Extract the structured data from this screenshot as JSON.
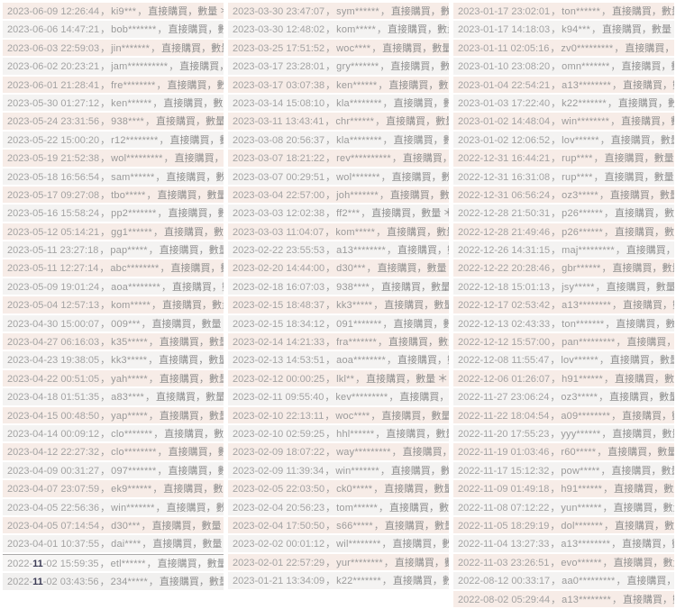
{
  "row_template": {
    "separator": "，",
    "purchase_text": "直接購買",
    "quantity_text": "數量",
    "quantity_symbol": "＊"
  },
  "colors": {
    "row_pink": "#f7ece7",
    "row_gray": "#f4f3f2",
    "text_gray": "#9a9a9a",
    "highlight": "#3b3b55",
    "divider_line": "#ababab"
  },
  "columns": [
    {
      "rows": [
        {
          "datetime": "2023-06-09 12:26:44",
          "user": "ki9***"
        },
        {
          "datetime": "2023-06-06 14:47:21",
          "user": "bob*******"
        },
        {
          "datetime": "2023-06-03 22:59:03",
          "user": "jin*******"
        },
        {
          "datetime": "2023-06-02 20:23:21",
          "user": "jam**********"
        },
        {
          "datetime": "2023-06-01 21:28:41",
          "user": "fre********"
        },
        {
          "datetime": "2023-05-30 01:27:12",
          "user": "ken******"
        },
        {
          "datetime": "2023-05-24 23:31:56",
          "user": "938****"
        },
        {
          "datetime": "2023-05-22 15:00:20",
          "user": "r12********"
        },
        {
          "datetime": "2023-05-19 21:52:38",
          "user": "wol*********"
        },
        {
          "datetime": "2023-05-18 16:56:54",
          "user": "sam******"
        },
        {
          "datetime": "2023-05-17 09:27:08",
          "user": "tbo*****"
        },
        {
          "datetime": "2023-05-16 15:58:24",
          "user": "pp2*******"
        },
        {
          "datetime": "2023-05-12 05:14:21",
          "user": "gg1******"
        },
        {
          "datetime": "2023-05-11 23:27:18",
          "user": "pap*****"
        },
        {
          "datetime": "2023-05-11 12:27:14",
          "user": "abc********"
        },
        {
          "datetime": "2023-05-09 19:01:24",
          "user": "aoa********"
        },
        {
          "datetime": "2023-05-04 12:57:13",
          "user": "kom*****"
        },
        {
          "datetime": "2023-04-30 15:00:07",
          "user": "009***"
        },
        {
          "datetime": "2023-04-27 06:16:03",
          "user": "k35*****"
        },
        {
          "datetime": "2023-04-23 19:38:05",
          "user": "kk3*****"
        },
        {
          "datetime": "2023-04-22 00:51:05",
          "user": "yah*****"
        },
        {
          "datetime": "2023-04-18 01:51:35",
          "user": "a83****"
        },
        {
          "datetime": "2023-04-15 00:48:50",
          "user": "yap*****"
        },
        {
          "datetime": "2023-04-14 00:09:12",
          "user": "clo*******"
        },
        {
          "datetime": "2023-04-12 22:27:32",
          "user": "clo********"
        },
        {
          "datetime": "2023-04-09 00:31:27",
          "user": "097*******"
        },
        {
          "datetime": "2023-04-07 23:07:59",
          "user": "ek9******"
        },
        {
          "datetime": "2023-04-05 22:56:36",
          "user": "win*******"
        },
        {
          "datetime": "2023-04-05 07:14:54",
          "user": "d30***"
        },
        {
          "datetime": "2023-04-01 10:37:55",
          "user": "dai****"
        },
        {
          "datetime": "2022-11-02 15:59:35",
          "user": "etl******",
          "highlight": "11",
          "divider": true,
          "muted": "a"
        },
        {
          "datetime": "2022-11-02 03:43:56",
          "user": "234*****",
          "highlight": "11",
          "muted": "b"
        }
      ]
    },
    {
      "rows": [
        {
          "datetime": "2023-03-30 23:47:07",
          "user": "sym******"
        },
        {
          "datetime": "2023-03-30 12:48:02",
          "user": "kom*****"
        },
        {
          "datetime": "2023-03-25 17:51:52",
          "user": "woc****"
        },
        {
          "datetime": "2023-03-17 23:28:01",
          "user": "gry*******"
        },
        {
          "datetime": "2023-03-17 03:07:38",
          "user": "ken******"
        },
        {
          "datetime": "2023-03-14 15:08:10",
          "user": "kla********"
        },
        {
          "datetime": "2023-03-11 13:43:41",
          "user": "chr******"
        },
        {
          "datetime": "2023-03-08 20:56:37",
          "user": "kla********"
        },
        {
          "datetime": "2023-03-07 18:21:22",
          "user": "rev**********"
        },
        {
          "datetime": "2023-03-07 00:29:51",
          "user": "wol*******"
        },
        {
          "datetime": "2023-03-04 22:57:00",
          "user": "joh*******"
        },
        {
          "datetime": "2023-03-03 12:02:38",
          "user": "ff2***"
        },
        {
          "datetime": "2023-03-03 11:04:07",
          "user": "kom*****"
        },
        {
          "datetime": "2023-02-22 23:55:53",
          "user": "a13********"
        },
        {
          "datetime": "2023-02-20 14:44:00",
          "user": "d30***"
        },
        {
          "datetime": "2023-02-18 16:07:03",
          "user": "938****"
        },
        {
          "datetime": "2023-02-15 18:48:37",
          "user": "kk3*****"
        },
        {
          "datetime": "2023-02-15 18:34:12",
          "user": "091*******"
        },
        {
          "datetime": "2023-02-14 14:21:33",
          "user": "fra*******"
        },
        {
          "datetime": "2023-02-13 14:53:51",
          "user": "aoa********"
        },
        {
          "datetime": "2023-02-12 00:00:25",
          "user": "lkl**"
        },
        {
          "datetime": "2023-02-11 09:55:40",
          "user": "kev*********"
        },
        {
          "datetime": "2023-02-10 22:13:11",
          "user": "woc****"
        },
        {
          "datetime": "2023-02-10 02:59:25",
          "user": "hhl******"
        },
        {
          "datetime": "2023-02-09 18:07:22",
          "user": "way*********"
        },
        {
          "datetime": "2023-02-09 11:39:34",
          "user": "win*******"
        },
        {
          "datetime": "2023-02-05 22:03:50",
          "user": "ck0*****"
        },
        {
          "datetime": "2023-02-04 20:56:23",
          "user": "tom******"
        },
        {
          "datetime": "2023-02-04 17:50:50",
          "user": "s66*****"
        },
        {
          "datetime": "2023-02-02 00:01:12",
          "user": "wil********"
        },
        {
          "datetime": "2023-02-01 22:57:29",
          "user": "yur********"
        },
        {
          "datetime": "2023-01-21 13:34:09",
          "user": "k22*******"
        }
      ]
    },
    {
      "rows": [
        {
          "datetime": "2023-01-17 23:02:01",
          "user": "ton******"
        },
        {
          "datetime": "2023-01-17 14:18:03",
          "user": "k94***"
        },
        {
          "datetime": "2023-01-11 02:05:16",
          "user": "zv0*********"
        },
        {
          "datetime": "2023-01-10 23:08:20",
          "user": "omn*******"
        },
        {
          "datetime": "2023-01-04 22:54:21",
          "user": "a13********"
        },
        {
          "datetime": "2023-01-03 17:22:40",
          "user": "k22*******"
        },
        {
          "datetime": "2023-01-02 14:48:04",
          "user": "win********"
        },
        {
          "datetime": "2023-01-02 12:06:52",
          "user": "lov******"
        },
        {
          "datetime": "2022-12-31 16:44:21",
          "user": "rup****"
        },
        {
          "datetime": "2022-12-31 16:31:08",
          "user": "rup****"
        },
        {
          "datetime": "2022-12-31 06:56:24",
          "user": "oz3*****"
        },
        {
          "datetime": "2022-12-28 21:50:31",
          "user": "p26******"
        },
        {
          "datetime": "2022-12-28 21:49:46",
          "user": "p26******"
        },
        {
          "datetime": "2022-12-26 14:31:15",
          "user": "maj*********"
        },
        {
          "datetime": "2022-12-22 20:28:46",
          "user": "gbr******"
        },
        {
          "datetime": "2022-12-18 15:01:13",
          "user": "jsy*****"
        },
        {
          "datetime": "2022-12-17 02:53:42",
          "user": "a13********"
        },
        {
          "datetime": "2022-12-13 02:43:33",
          "user": "ton*******"
        },
        {
          "datetime": "2022-12-12 15:57:00",
          "user": "pan*********"
        },
        {
          "datetime": "2022-12-08 11:55:47",
          "user": "lov******"
        },
        {
          "datetime": "2022-12-06 01:26:07",
          "user": "h91******"
        },
        {
          "datetime": "2022-11-27 23:06:24",
          "user": "oz3*****"
        },
        {
          "datetime": "2022-11-22 18:04:54",
          "user": "a09********"
        },
        {
          "datetime": "2022-11-20 17:55:23",
          "user": "yyy******"
        },
        {
          "datetime": "2022-11-19 01:03:46",
          "user": "r60*****"
        },
        {
          "datetime": "2022-11-17 15:12:32",
          "user": "pow*****"
        },
        {
          "datetime": "2022-11-09 01:49:18",
          "user": "h91******"
        },
        {
          "datetime": "2022-11-08 07:12:22",
          "user": "yun******"
        },
        {
          "datetime": "2022-11-05 18:29:19",
          "user": "dol*******"
        },
        {
          "datetime": "2022-11-04 13:27:33",
          "user": "a13********"
        },
        {
          "datetime": "2022-11-03 23:26:51",
          "user": "evo******"
        },
        {
          "datetime": "2022-08-12 00:33:17",
          "user": "aa0*********"
        },
        {
          "datetime": "2022-08-02 05:29:44",
          "user": "a13********"
        }
      ]
    }
  ]
}
